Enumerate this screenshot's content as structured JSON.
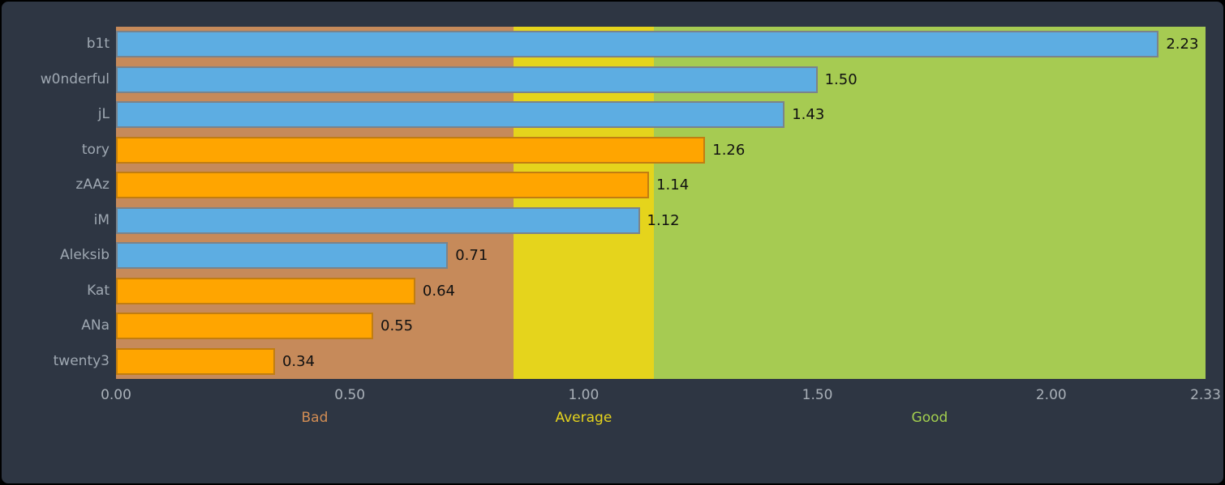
{
  "chart_data": {
    "type": "bar",
    "orientation": "horizontal",
    "title": "",
    "categories": [
      "b1t",
      "w0nderful",
      "jL",
      "tory",
      "zAAz",
      "iM",
      "Aleksib",
      "Kat",
      "ANa",
      "twenty3"
    ],
    "values": [
      2.23,
      1.5,
      1.43,
      1.26,
      1.14,
      1.12,
      0.71,
      0.64,
      0.55,
      0.34
    ],
    "value_labels": [
      "2.23",
      "1.50",
      "1.43",
      "1.26",
      "1.14",
      "1.12",
      "0.71",
      "0.64",
      "0.55",
      "0.34"
    ],
    "bar_color_names": [
      "blue",
      "blue",
      "blue",
      "orange",
      "orange",
      "blue",
      "blue",
      "orange",
      "orange",
      "orange"
    ],
    "xlim": [
      0,
      2.33
    ],
    "x_ticks": [
      {
        "label": "0.00",
        "value": 0.0
      },
      {
        "label": "0.50",
        "value": 0.5
      },
      {
        "label": "1.00",
        "value": 1.0
      },
      {
        "label": "1.50",
        "value": 1.5
      },
      {
        "label": "2.00",
        "value": 2.0
      },
      {
        "label": "2.33",
        "value": 2.33
      }
    ],
    "zones": [
      {
        "label": "Bad",
        "start": 0.0,
        "end": 0.85,
        "fill": "#c68a5a",
        "label_color": "#d28d54"
      },
      {
        "label": "Average",
        "start": 0.85,
        "end": 1.15,
        "fill": "#e5d41c",
        "label_color": "#e6d41c"
      },
      {
        "label": "Good",
        "start": 1.15,
        "end": 2.33,
        "fill": "#a6cb52",
        "label_color": "#a3cf4f"
      }
    ],
    "colors": {
      "background": "#2e3643",
      "frame_border": "#000000",
      "bar_blue": "#5dade2",
      "bar_blue_border": "#7a838b",
      "bar_orange": "#ffa500",
      "bar_orange_border": "#c17d11",
      "value_label": "#111111",
      "category_label": "#9fa8b2",
      "tick_label": "#a9b0b8"
    },
    "grid": false,
    "legend": null
  }
}
